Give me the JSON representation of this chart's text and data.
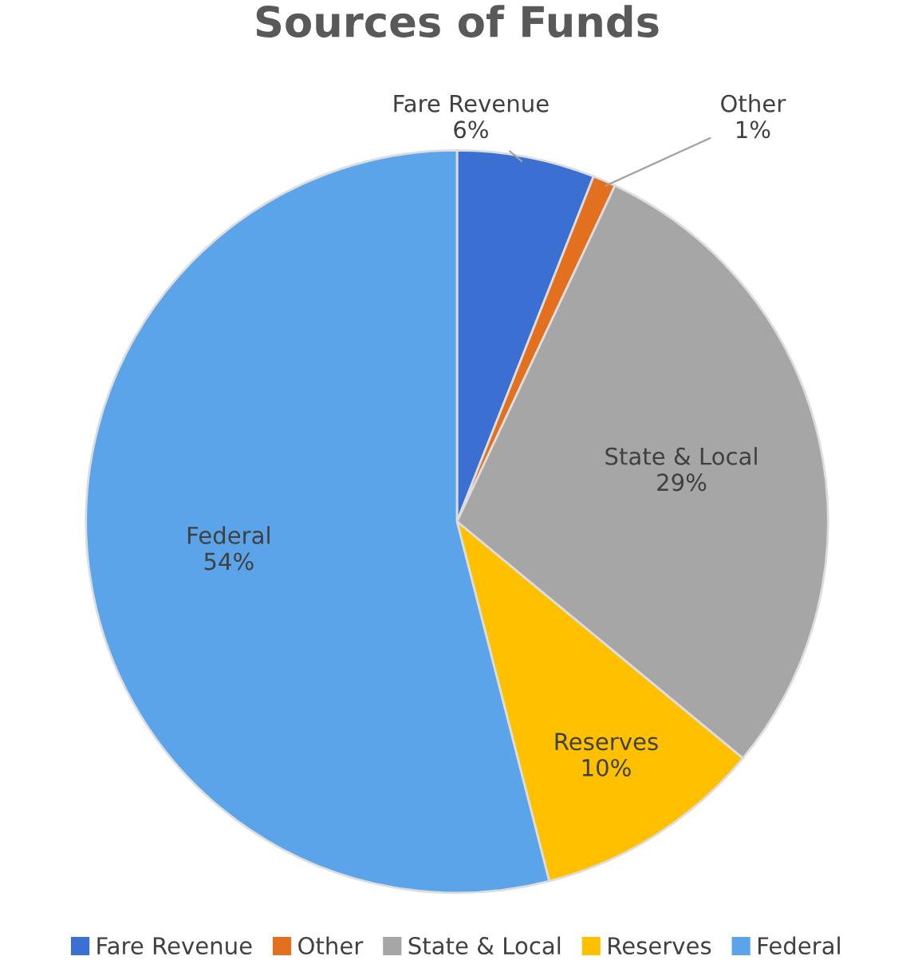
{
  "chart_data": {
    "type": "pie",
    "title": "Sources of Funds",
    "categories": [
      "Fare Revenue",
      "Other",
      "State & Local",
      "Reserves",
      "Federal"
    ],
    "values": [
      6,
      1,
      29,
      10,
      54
    ],
    "value_labels": [
      "6%",
      "1%",
      "29%",
      "10%",
      "54%"
    ],
    "colors": [
      "#3b6fd1",
      "#e2701f",
      "#a6a6a6",
      "#ffc000",
      "#5ba4ea"
    ],
    "legend": "bottom"
  }
}
